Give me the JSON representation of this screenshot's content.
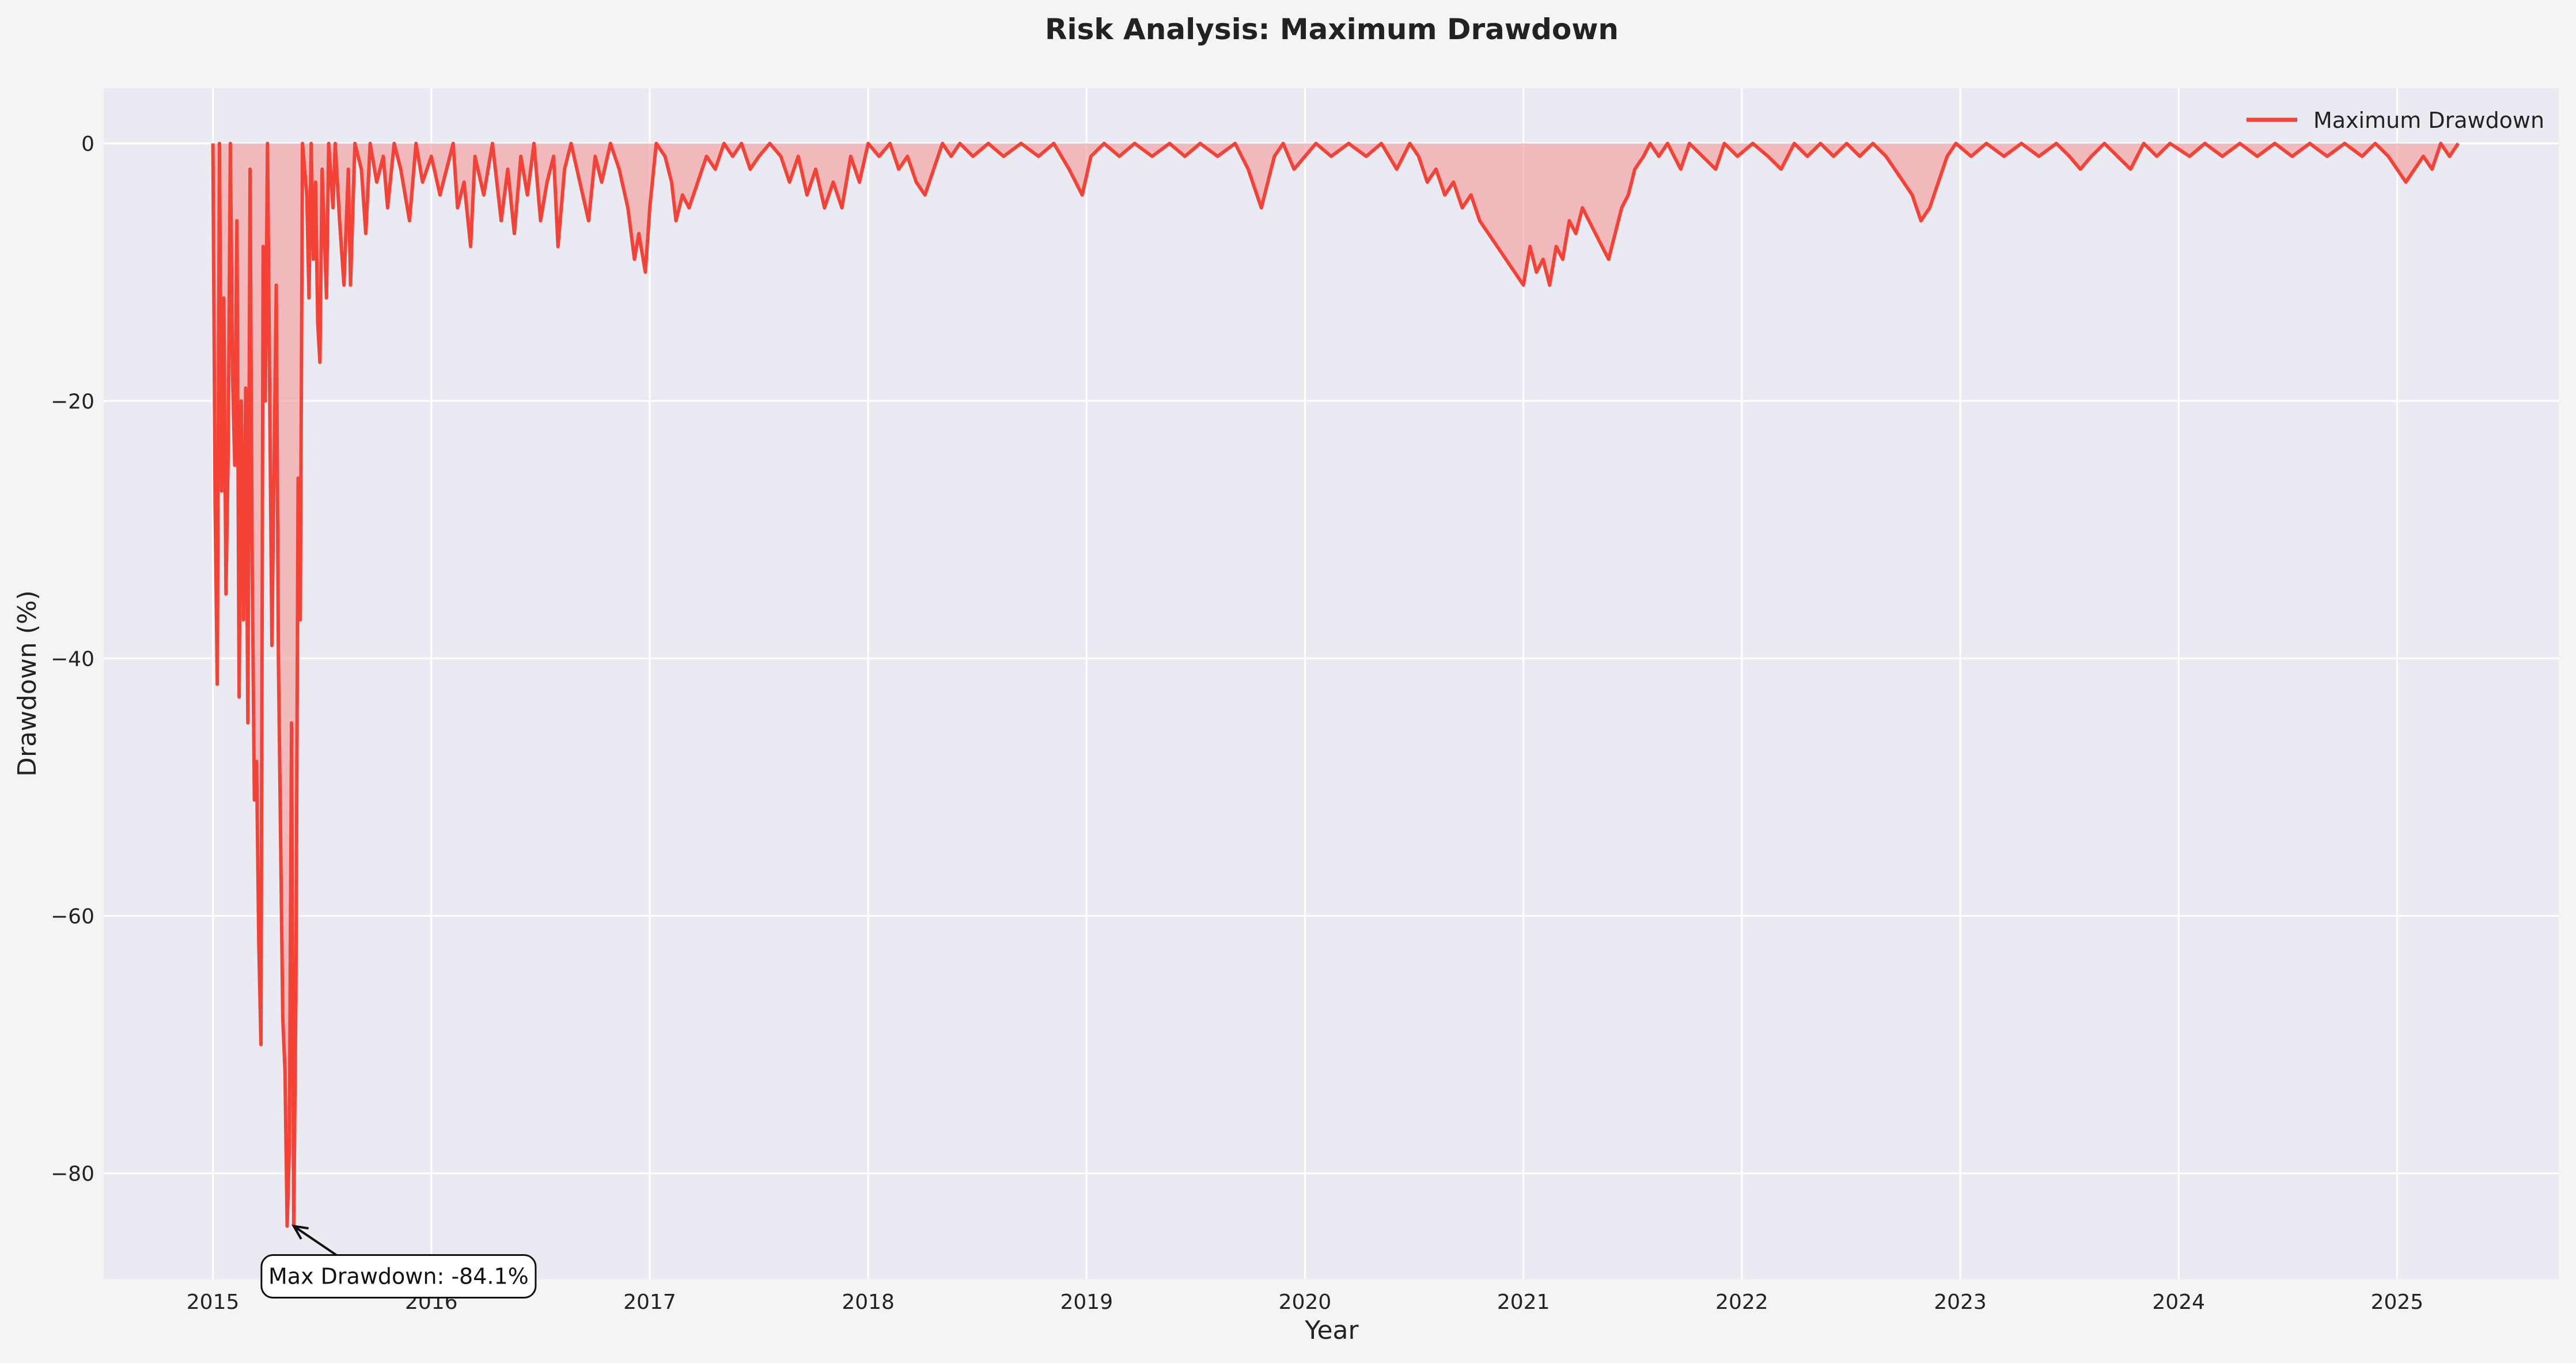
{
  "chart_data": {
    "type": "area",
    "title": "Risk Analysis: Maximum Drawdown",
    "xlabel": "Year",
    "ylabel": "Drawdown (%)",
    "xlim": [
      2014.5,
      2025.74
    ],
    "ylim": [
      -88.2,
      4.3
    ],
    "x_ticks": [
      2015,
      2016,
      2017,
      2018,
      2019,
      2020,
      2021,
      2022,
      2023,
      2024,
      2025
    ],
    "y_ticks": [
      0,
      -20,
      -40,
      -60,
      -80
    ],
    "grid": true,
    "legend": {
      "position": "top-right",
      "entries": [
        "Maximum Drawdown"
      ]
    },
    "series": [
      {
        "name": "Maximum Drawdown",
        "color": "#f44336",
        "fill_color": "#f4a4a4",
        "points": [
          [
            2015.0,
            0
          ],
          [
            2015.01,
            -28
          ],
          [
            2015.02,
            -42
          ],
          [
            2015.03,
            0
          ],
          [
            2015.04,
            -27
          ],
          [
            2015.05,
            -12
          ],
          [
            2015.06,
            -35
          ],
          [
            2015.07,
            -24
          ],
          [
            2015.08,
            0
          ],
          [
            2015.09,
            -18
          ],
          [
            2015.1,
            -25
          ],
          [
            2015.11,
            -6
          ],
          [
            2015.12,
            -43
          ],
          [
            2015.13,
            -20
          ],
          [
            2015.14,
            -37
          ],
          [
            2015.15,
            -19
          ],
          [
            2015.16,
            -45
          ],
          [
            2015.17,
            -2
          ],
          [
            2015.18,
            -33
          ],
          [
            2015.19,
            -51
          ],
          [
            2015.2,
            -48
          ],
          [
            2015.21,
            -62
          ],
          [
            2015.22,
            -70
          ],
          [
            2015.23,
            -8
          ],
          [
            2015.24,
            -20
          ],
          [
            2015.25,
            0
          ],
          [
            2015.27,
            -39
          ],
          [
            2015.29,
            -11
          ],
          [
            2015.3,
            -40
          ],
          [
            2015.32,
            -68
          ],
          [
            2015.33,
            -72
          ],
          [
            2015.34,
            -84.1
          ],
          [
            2015.35,
            -78
          ],
          [
            2015.36,
            -45
          ],
          [
            2015.37,
            -84
          ],
          [
            2015.38,
            -66
          ],
          [
            2015.39,
            -26
          ],
          [
            2015.4,
            -37
          ],
          [
            2015.41,
            0
          ],
          [
            2015.43,
            -4
          ],
          [
            2015.44,
            -12
          ],
          [
            2015.45,
            0
          ],
          [
            2015.46,
            -9
          ],
          [
            2015.47,
            -3
          ],
          [
            2015.48,
            -14
          ],
          [
            2015.49,
            -17
          ],
          [
            2015.5,
            -2
          ],
          [
            2015.52,
            -12
          ],
          [
            2015.53,
            0
          ],
          [
            2015.55,
            -5
          ],
          [
            2015.56,
            0
          ],
          [
            2015.58,
            -6
          ],
          [
            2015.6,
            -11
          ],
          [
            2015.62,
            -2
          ],
          [
            2015.63,
            -11
          ],
          [
            2015.65,
            0
          ],
          [
            2015.68,
            -2
          ],
          [
            2015.7,
            -7
          ],
          [
            2015.72,
            0
          ],
          [
            2015.75,
            -3
          ],
          [
            2015.78,
            -1
          ],
          [
            2015.8,
            -5
          ],
          [
            2015.83,
            0
          ],
          [
            2015.86,
            -2
          ],
          [
            2015.9,
            -6
          ],
          [
            2015.93,
            0
          ],
          [
            2015.96,
            -3
          ],
          [
            2016.0,
            -1
          ],
          [
            2016.04,
            -4
          ],
          [
            2016.07,
            -2
          ],
          [
            2016.1,
            0
          ],
          [
            2016.12,
            -5
          ],
          [
            2016.15,
            -3
          ],
          [
            2016.18,
            -8
          ],
          [
            2016.2,
            -1
          ],
          [
            2016.24,
            -4
          ],
          [
            2016.28,
            0
          ],
          [
            2016.32,
            -6
          ],
          [
            2016.35,
            -2
          ],
          [
            2016.38,
            -7
          ],
          [
            2016.41,
            -1
          ],
          [
            2016.44,
            -4
          ],
          [
            2016.47,
            0
          ],
          [
            2016.5,
            -6
          ],
          [
            2016.53,
            -3
          ],
          [
            2016.56,
            -1
          ],
          [
            2016.58,
            -8
          ],
          [
            2016.61,
            -2
          ],
          [
            2016.64,
            0
          ],
          [
            2016.68,
            -3
          ],
          [
            2016.72,
            -6
          ],
          [
            2016.75,
            -1
          ],
          [
            2016.78,
            -3
          ],
          [
            2016.82,
            0
          ],
          [
            2016.86,
            -2
          ],
          [
            2016.9,
            -5
          ],
          [
            2016.93,
            -9
          ],
          [
            2016.95,
            -7
          ],
          [
            2016.98,
            -10
          ],
          [
            2017.0,
            -5
          ],
          [
            2017.03,
            0
          ],
          [
            2017.07,
            -1
          ],
          [
            2017.1,
            -3
          ],
          [
            2017.12,
            -6
          ],
          [
            2017.15,
            -4
          ],
          [
            2017.18,
            -5
          ],
          [
            2017.22,
            -3
          ],
          [
            2017.26,
            -1
          ],
          [
            2017.3,
            -2
          ],
          [
            2017.34,
            0
          ],
          [
            2017.38,
            -1
          ],
          [
            2017.42,
            0
          ],
          [
            2017.46,
            -2
          ],
          [
            2017.5,
            -1
          ],
          [
            2017.55,
            0
          ],
          [
            2017.6,
            -1
          ],
          [
            2017.64,
            -3
          ],
          [
            2017.68,
            -1
          ],
          [
            2017.72,
            -4
          ],
          [
            2017.76,
            -2
          ],
          [
            2017.8,
            -5
          ],
          [
            2017.84,
            -3
          ],
          [
            2017.88,
            -5
          ],
          [
            2017.92,
            -1
          ],
          [
            2017.96,
            -3
          ],
          [
            2018.0,
            0
          ],
          [
            2018.05,
            -1
          ],
          [
            2018.1,
            0
          ],
          [
            2018.14,
            -2
          ],
          [
            2018.18,
            -1
          ],
          [
            2018.22,
            -3
          ],
          [
            2018.26,
            -4
          ],
          [
            2018.3,
            -2
          ],
          [
            2018.34,
            0
          ],
          [
            2018.38,
            -1
          ],
          [
            2018.42,
            0
          ],
          [
            2018.48,
            -1
          ],
          [
            2018.55,
            0
          ],
          [
            2018.62,
            -1
          ],
          [
            2018.7,
            0
          ],
          [
            2018.78,
            -1
          ],
          [
            2018.85,
            0
          ],
          [
            2018.92,
            -2
          ],
          [
            2018.98,
            -4
          ],
          [
            2019.02,
            -1
          ],
          [
            2019.08,
            0
          ],
          [
            2019.15,
            -1
          ],
          [
            2019.22,
            0
          ],
          [
            2019.3,
            -1
          ],
          [
            2019.38,
            0
          ],
          [
            2019.45,
            -1
          ],
          [
            2019.52,
            0
          ],
          [
            2019.6,
            -1
          ],
          [
            2019.68,
            0
          ],
          [
            2019.74,
            -2
          ],
          [
            2019.78,
            -4
          ],
          [
            2019.8,
            -5
          ],
          [
            2019.83,
            -3
          ],
          [
            2019.86,
            -1
          ],
          [
            2019.9,
            0
          ],
          [
            2019.95,
            -2
          ],
          [
            2020.0,
            -1
          ],
          [
            2020.05,
            0
          ],
          [
            2020.12,
            -1
          ],
          [
            2020.2,
            0
          ],
          [
            2020.28,
            -1
          ],
          [
            2020.35,
            0
          ],
          [
            2020.42,
            -2
          ],
          [
            2020.48,
            0
          ],
          [
            2020.52,
            -1
          ],
          [
            2020.56,
            -3
          ],
          [
            2020.6,
            -2
          ],
          [
            2020.64,
            -4
          ],
          [
            2020.68,
            -3
          ],
          [
            2020.72,
            -5
          ],
          [
            2020.76,
            -4
          ],
          [
            2020.8,
            -6
          ],
          [
            2020.84,
            -7
          ],
          [
            2020.88,
            -8
          ],
          [
            2020.92,
            -9
          ],
          [
            2020.96,
            -10
          ],
          [
            2021.0,
            -11
          ],
          [
            2021.03,
            -8
          ],
          [
            2021.06,
            -10
          ],
          [
            2021.09,
            -9
          ],
          [
            2021.12,
            -11
          ],
          [
            2021.15,
            -8
          ],
          [
            2021.18,
            -9
          ],
          [
            2021.21,
            -6
          ],
          [
            2021.24,
            -7
          ],
          [
            2021.27,
            -5
          ],
          [
            2021.3,
            -6
          ],
          [
            2021.33,
            -7
          ],
          [
            2021.36,
            -8
          ],
          [
            2021.39,
            -9
          ],
          [
            2021.42,
            -7
          ],
          [
            2021.45,
            -5
          ],
          [
            2021.48,
            -4
          ],
          [
            2021.51,
            -2
          ],
          [
            2021.55,
            -1
          ],
          [
            2021.58,
            0
          ],
          [
            2021.62,
            -1
          ],
          [
            2021.66,
            0
          ],
          [
            2021.72,
            -2
          ],
          [
            2021.76,
            0
          ],
          [
            2021.82,
            -1
          ],
          [
            2021.88,
            -2
          ],
          [
            2021.92,
            0
          ],
          [
            2021.98,
            -1
          ],
          [
            2022.05,
            0
          ],
          [
            2022.12,
            -1
          ],
          [
            2022.18,
            -2
          ],
          [
            2022.24,
            0
          ],
          [
            2022.3,
            -1
          ],
          [
            2022.36,
            0
          ],
          [
            2022.42,
            -1
          ],
          [
            2022.48,
            0
          ],
          [
            2022.54,
            -1
          ],
          [
            2022.6,
            0
          ],
          [
            2022.66,
            -1
          ],
          [
            2022.7,
            -2
          ],
          [
            2022.74,
            -3
          ],
          [
            2022.78,
            -4
          ],
          [
            2022.82,
            -6
          ],
          [
            2022.86,
            -5
          ],
          [
            2022.9,
            -3
          ],
          [
            2022.94,
            -1
          ],
          [
            2022.98,
            0
          ],
          [
            2023.05,
            -1
          ],
          [
            2023.12,
            0
          ],
          [
            2023.2,
            -1
          ],
          [
            2023.28,
            0
          ],
          [
            2023.36,
            -1
          ],
          [
            2023.44,
            0
          ],
          [
            2023.5,
            -1
          ],
          [
            2023.55,
            -2
          ],
          [
            2023.6,
            -1
          ],
          [
            2023.66,
            0
          ],
          [
            2023.72,
            -1
          ],
          [
            2023.78,
            -2
          ],
          [
            2023.84,
            0
          ],
          [
            2023.9,
            -1
          ],
          [
            2023.96,
            0
          ],
          [
            2024.05,
            -1
          ],
          [
            2024.12,
            0
          ],
          [
            2024.2,
            -1
          ],
          [
            2024.28,
            0
          ],
          [
            2024.36,
            -1
          ],
          [
            2024.44,
            0
          ],
          [
            2024.52,
            -1
          ],
          [
            2024.6,
            0
          ],
          [
            2024.68,
            -1
          ],
          [
            2024.76,
            0
          ],
          [
            2024.84,
            -1
          ],
          [
            2024.9,
            0
          ],
          [
            2024.96,
            -1
          ],
          [
            2025.0,
            -2
          ],
          [
            2025.04,
            -3
          ],
          [
            2025.08,
            -2
          ],
          [
            2025.12,
            -1
          ],
          [
            2025.16,
            -2
          ],
          [
            2025.2,
            0
          ],
          [
            2025.24,
            -1
          ],
          [
            2025.28,
            0
          ]
        ]
      }
    ],
    "annotations": [
      {
        "text": "Max Drawdown: -84.1%",
        "target": [
          2015.37,
          -84.1
        ],
        "text_anchor": [
          2015.85,
          -88.0
        ]
      }
    ]
  }
}
